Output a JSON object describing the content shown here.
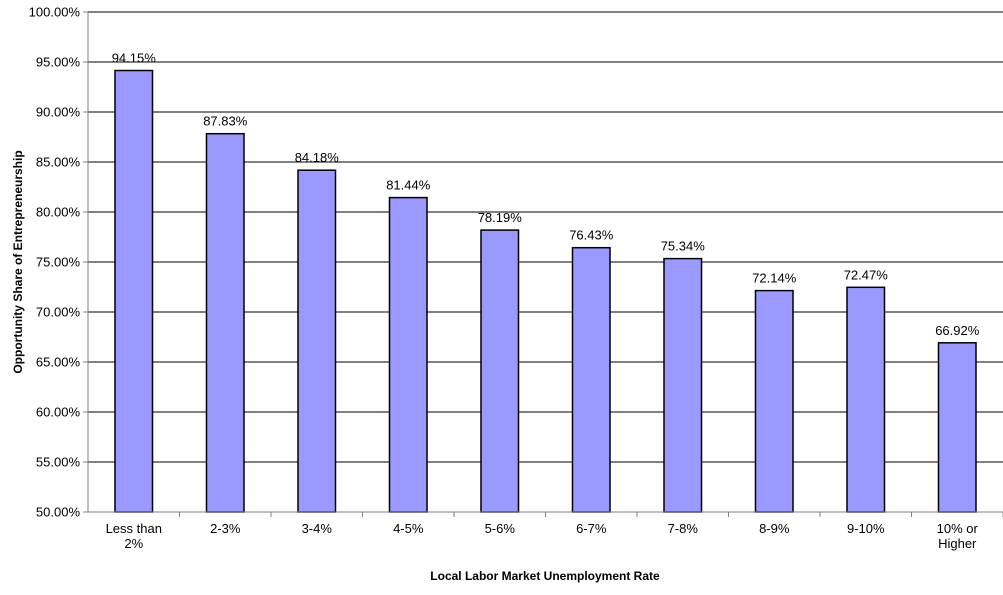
{
  "chart_data": {
    "type": "bar",
    "title": "",
    "xlabel": "Local Labor Market Unemployment Rate",
    "ylabel": "Opportunity Share of Entrepreneurship",
    "categories": [
      [
        "Less than",
        "2%"
      ],
      [
        "2-3%"
      ],
      [
        "3-4%"
      ],
      [
        "4-5%"
      ],
      [
        "5-6%"
      ],
      [
        "6-7%"
      ],
      [
        "7-8%"
      ],
      [
        "8-9%"
      ],
      [
        "9-10%"
      ],
      [
        "10% or",
        "Higher"
      ]
    ],
    "values": [
      94.15,
      87.83,
      84.18,
      81.44,
      78.19,
      76.43,
      75.34,
      72.14,
      72.47,
      66.92
    ],
    "data_labels": [
      "94.15%",
      "87.83%",
      "84.18%",
      "81.44%",
      "78.19%",
      "76.43%",
      "75.34%",
      "72.14%",
      "72.47%",
      "66.92%"
    ],
    "ylim": [
      50,
      100
    ],
    "yticks": [
      50,
      55,
      60,
      65,
      70,
      75,
      80,
      85,
      90,
      95,
      100
    ],
    "ytick_labels": [
      "50.00%",
      "55.00%",
      "60.00%",
      "65.00%",
      "70.00%",
      "75.00%",
      "80.00%",
      "85.00%",
      "90.00%",
      "95.00%",
      "100.00%"
    ],
    "grid": true,
    "legend": "none",
    "colors": {
      "bar_fill": "#9999ff",
      "bar_stroke": "#000000",
      "grid": "#000000",
      "axis": "#808080"
    }
  }
}
